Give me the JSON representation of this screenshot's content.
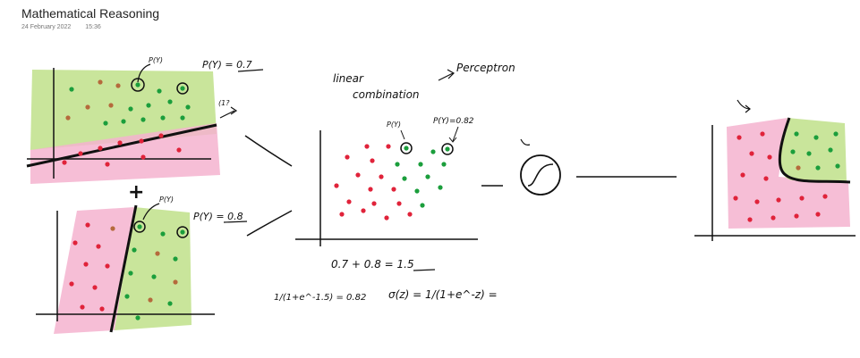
{
  "page": {
    "title": "Mathematical Reasoning",
    "date": "24 February 2022",
    "time": "15:36"
  },
  "ink": {
    "pink": "#f5b3cf",
    "green": "#bfe08a",
    "red_dot": "#e0233a",
    "green_dot": "#1b9e3c",
    "brown_dot": "#b56a3c",
    "stroke": "#111111"
  },
  "notes": {
    "top_py_small": "P(Y)",
    "top_py_value": "P(Y) = 0.7",
    "question_mark": "(1?",
    "plus": "+",
    "bottom_py_small": "P(Y)",
    "bottom_py_value": "P(Y) = 0.8",
    "linear_combination_1": "linear",
    "linear_combination_2": "combination",
    "perceptron": "Perceptron",
    "middle_py_small": "P(Y)",
    "middle_py_value": "P(Y)=0.82",
    "sum_equation": "0.7 + 0.8 = 1.5",
    "sigmoid_eval": "1/(1+e^-1.5) = 0.82",
    "sigmoid_def": "σ(z) = 1/(1+e^-z) ="
  }
}
